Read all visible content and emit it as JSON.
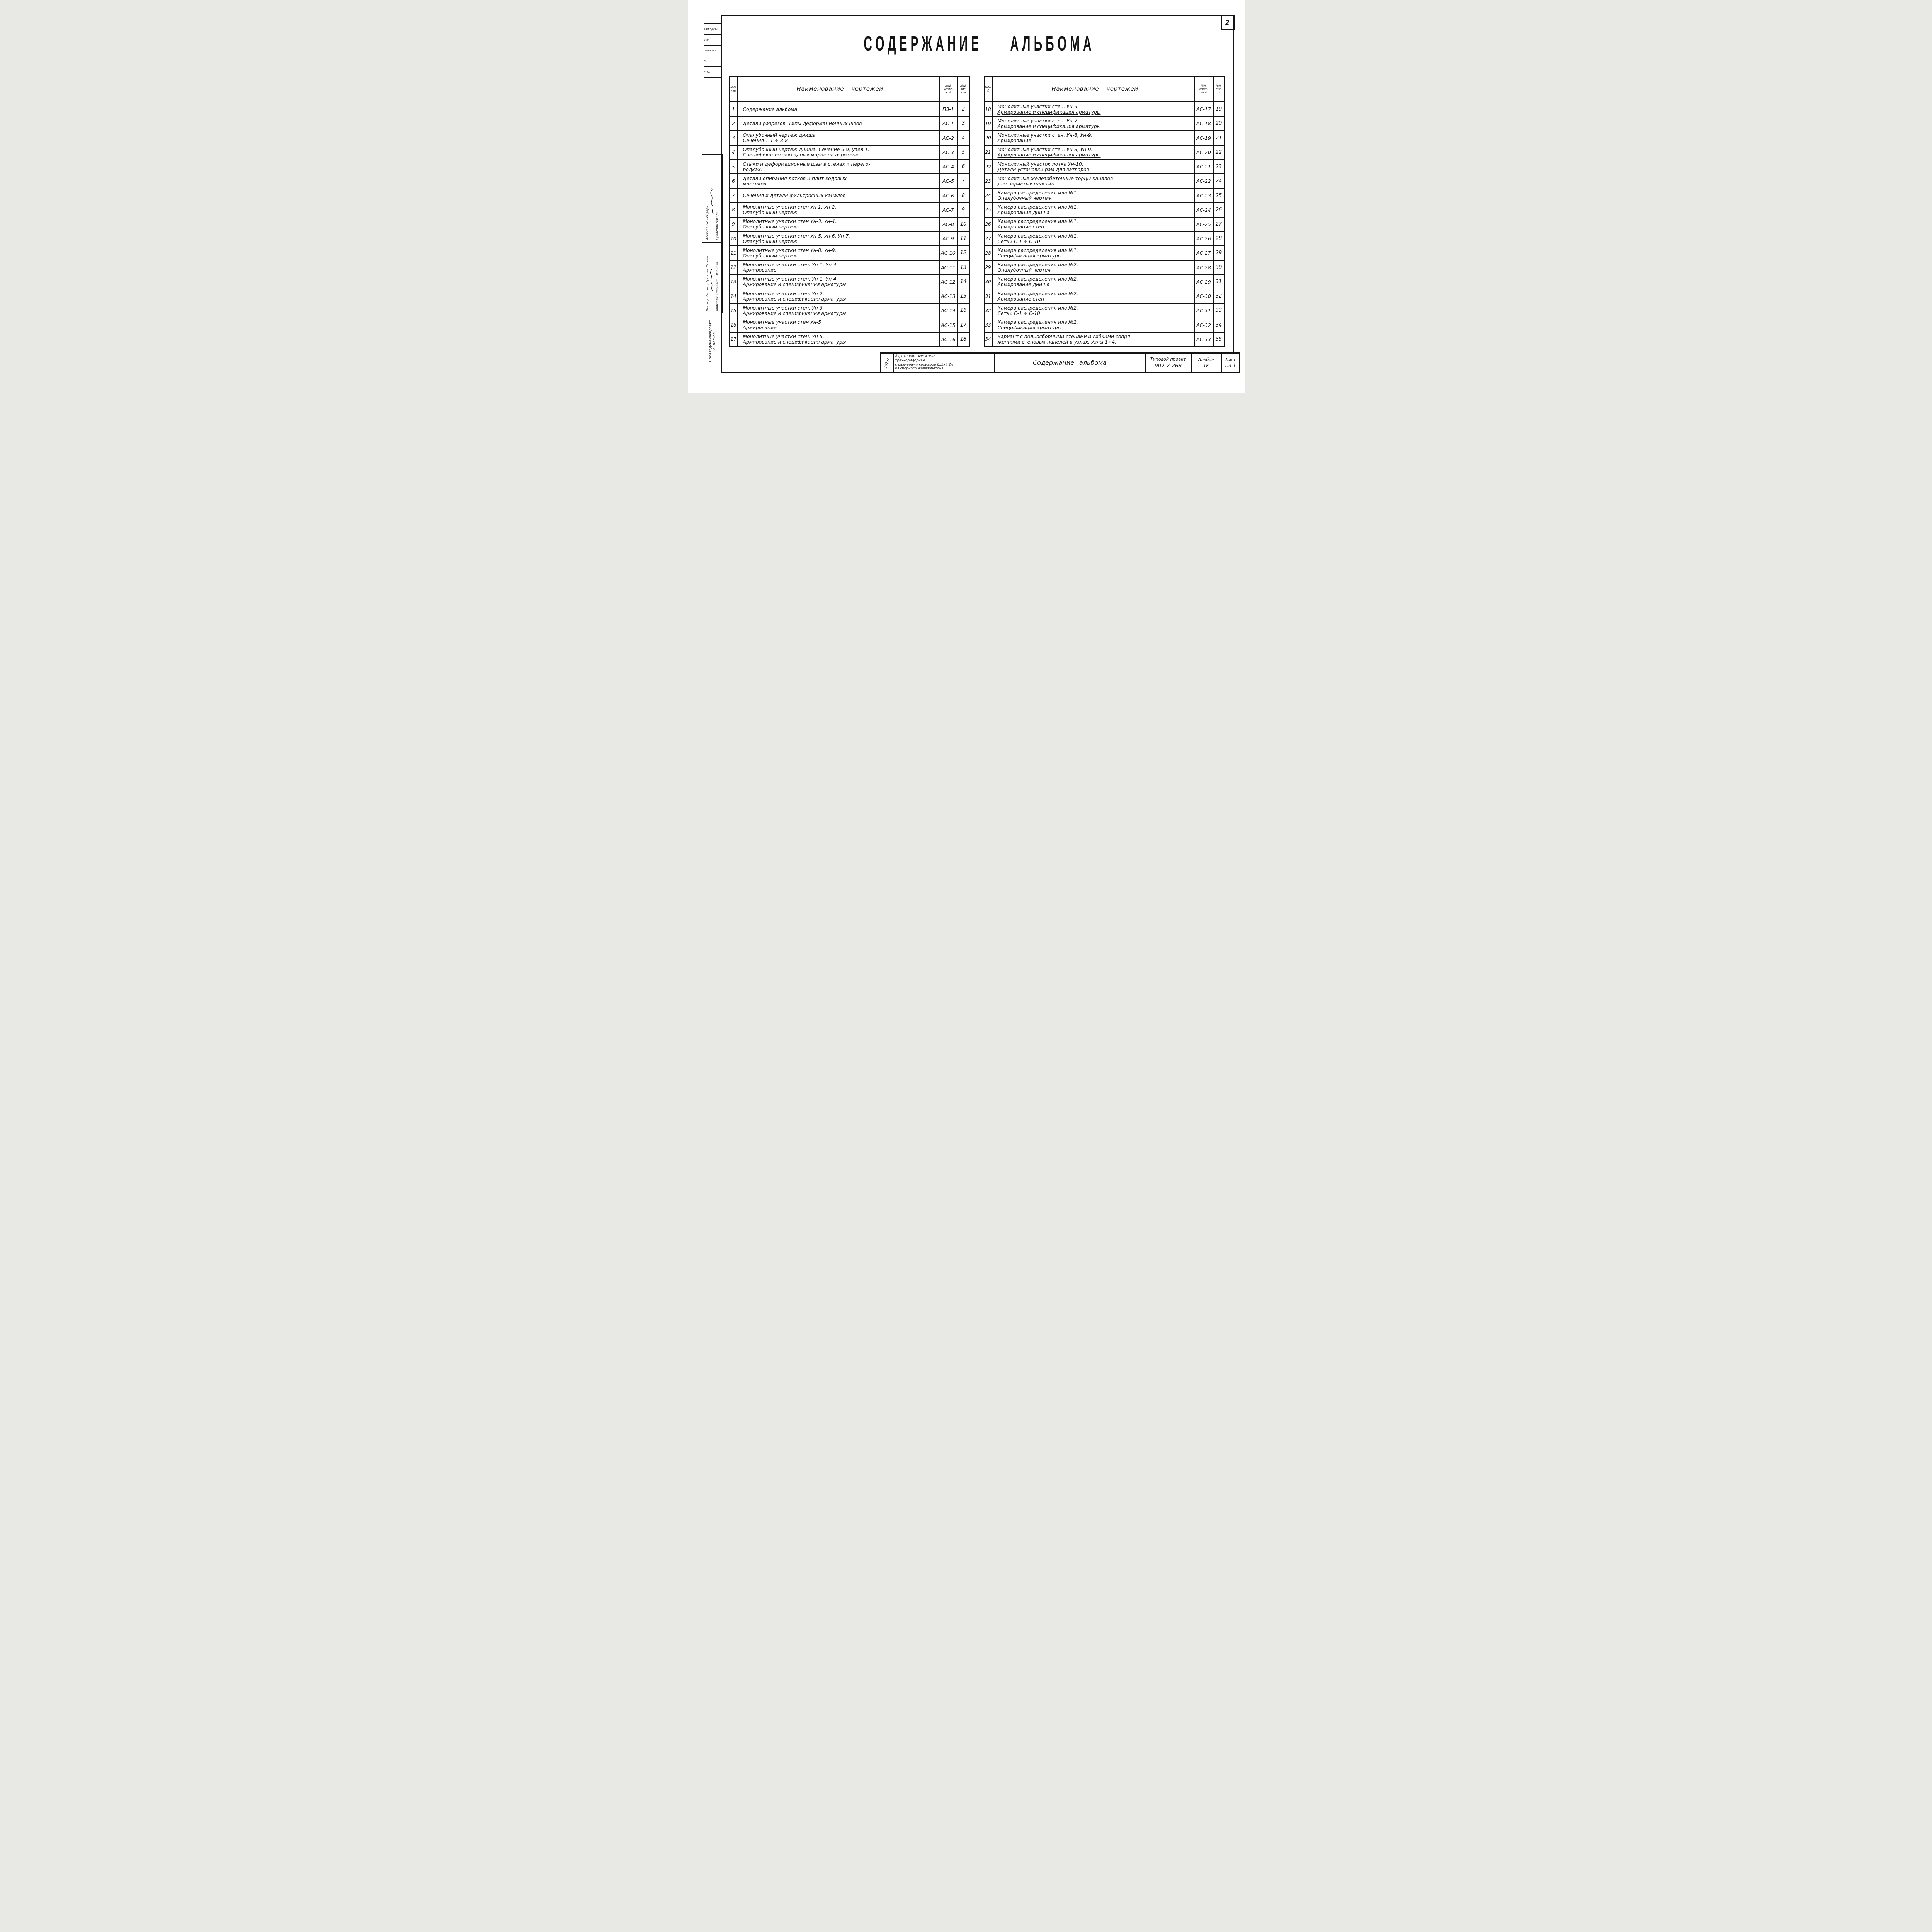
{
  "page": {
    "number": "2"
  },
  "title": "СОДЕРЖАНИЕ АЛЬБОМА",
  "tables": {
    "left": {
      "header": {
        "num": [
          "№№",
          "изм"
        ],
        "name": "Наименование чертежей",
        "dwg": [
          "№№",
          "черте-",
          "жей"
        ],
        "sh": [
          "№№",
          "лис-",
          "тов"
        ]
      },
      "rows": [
        {
          "n": "1",
          "l1": "Содержание альбома",
          "l2": "",
          "dwg": "П3-1",
          "sh": "2"
        },
        {
          "n": "2",
          "l1": "Детали разрезов. Типы деформационных швов",
          "l2": "",
          "dwg": "АС-1",
          "sh": "3"
        },
        {
          "n": "3",
          "l1": "Опалубочный чертеж днища.",
          "l2": "Сечения 1-1 ÷ 8-8",
          "dwg": "АС-2",
          "sh": "4"
        },
        {
          "n": "4",
          "l1": "Опалубочный чертеж днища. Сечение 9-9, узел 1.",
          "l2": "Спецификация закладных марок на аэротенк",
          "dwg": "АС-3",
          "sh": "5"
        },
        {
          "n": "5",
          "l1": "Стыки и деформационные швы в стенах и перего-",
          "l2": "родках.",
          "dwg": "АС-4",
          "sh": "6"
        },
        {
          "n": "6",
          "l1": "Детали опирания лотков и плит ходовых",
          "l2": "мостиков",
          "dwg": "АС-5",
          "sh": "7"
        },
        {
          "n": "7",
          "l1": "Сечения и детали фильтросных каналов",
          "l2": "",
          "dwg": "АС-6",
          "sh": "8"
        },
        {
          "n": "8",
          "l1": "Монолитные участки стен Ун-1, Ун-2.",
          "l2": "Опалубочный чертеж",
          "dwg": "АС-7",
          "sh": "9"
        },
        {
          "n": "9",
          "l1": "Монолитные участки стен Ун-3, Ун-4.",
          "l2": "Опалубочный чертеж",
          "dwg": "АС-8",
          "sh": "10"
        },
        {
          "n": "10",
          "l1": "Монолитные участки стен Ун-5, Ун-6, Ун-7.",
          "l2": "Опалубочный чертеж",
          "dwg": "АС-9",
          "sh": "11"
        },
        {
          "n": "11",
          "l1": "Монолитные участки стен Ун-8, Ун-9.",
          "l2": "Опалубочный чертеж",
          "dwg": "АС-10",
          "sh": "12"
        },
        {
          "n": "12",
          "l1": "Монолитные участки стен. Ун-1, Ун-4.",
          "l2": "Армирование",
          "dwg": "АС-11",
          "sh": "13"
        },
        {
          "n": "13",
          "l1": "Монолитные участки стен. Ун-1, Ун-4.",
          "l2": "Армирование и спецификация арматуры",
          "dwg": "АС-12",
          "sh": "14"
        },
        {
          "n": "14",
          "l1": "Монолитные участки стен. Ун-2.",
          "l2": "Армирование и спецификация арматуры",
          "dwg": "АС-13",
          "sh": "15"
        },
        {
          "n": "15",
          "l1": "Монолитные участки стен. Ун-3.",
          "l2": "Армирование и спецификация арматуры",
          "dwg": "АС-14",
          "sh": "16"
        },
        {
          "n": "16",
          "l1": "Монолитные участки стен Ун-5",
          "l2": "Армирование",
          "dwg": "АС-15",
          "sh": "17"
        },
        {
          "n": "17",
          "l1": "Монолитные участки стен. Ун-5.",
          "l2": "Армирование и спецификация арматуры",
          "dwg": "АС-16",
          "sh": "18"
        }
      ]
    },
    "right": {
      "header": {
        "num": [
          "№№",
          "п/п"
        ],
        "name": "Наименование чертежей",
        "dwg": [
          "№№",
          "черте-",
          "жей"
        ],
        "sh": [
          "№№",
          "лис-",
          "тов"
        ]
      },
      "rows": [
        {
          "n": "18",
          "l1": "Монолитные участки стен. Ун-6",
          "l2": "Армирование и спецификация арматуры",
          "u2": true,
          "dwg": "АС-17",
          "sh": "19"
        },
        {
          "n": "19",
          "l1": "Монолитные участки стен. Ун-7.",
          "l2": "Армирование и спецификация арматуры",
          "dwg": "АС-18",
          "sh": "20"
        },
        {
          "n": "20",
          "l1": "Монолитные участки стен. Ун-8, Ун-9.",
          "l2": "Армирование",
          "dwg": "АС-19",
          "sh": "21"
        },
        {
          "n": "21",
          "l1": "Монолитные участки стен. Ун-8, Ун-9.",
          "l2": "Армирование и спецификация арматуры",
          "u2": true,
          "dwg": "АС-20",
          "sh": "22"
        },
        {
          "n": "22",
          "l1": "Монолитный участок лотка Ун-10.",
          "l2": "Детали установки рам для затворов",
          "dwg": "АС-21",
          "sh": "23"
        },
        {
          "n": "23",
          "l1": "Монолитные железобетонные торцы каналов",
          "l2": "для пористых пластин",
          "dwg": "АС-22",
          "sh": "24"
        },
        {
          "n": "24",
          "l1": "Камера распределения ила №1.",
          "l2": "Опалубочный чертеж",
          "dwg": "АС-23",
          "sh": "25"
        },
        {
          "n": "25",
          "l1": "Камера распределения ила №1.",
          "l2": "Армирование днища",
          "dwg": "АС-24",
          "sh": "26"
        },
        {
          "n": "26",
          "l1": "Камера распределения ила №1.",
          "l2": "Армирование стен",
          "dwg": "АС-25",
          "sh": "27"
        },
        {
          "n": "27",
          "l1": "Камера распределения ила №1.",
          "l2": "Сетки С-1 ÷ С-10",
          "dwg": "АС-26",
          "sh": "28"
        },
        {
          "n": "28",
          "l1": "Камера распределения ила №1.",
          "l2": "Спецификация арматуры",
          "dwg": "АС-27",
          "sh": "29"
        },
        {
          "n": "29",
          "l1": "Камера распределения ила №2.",
          "l2": "Опалубочный чертеж",
          "dwg": "АС-28",
          "sh": "30"
        },
        {
          "n": "30",
          "l1": "Камера распределения ила №2.",
          "l2": "Армирование днища",
          "dwg": "АС-29",
          "sh": "31"
        },
        {
          "n": "31",
          "l1": "Камера распределения ила №2.",
          "l2": "Армирование стен",
          "dwg": "АС-30",
          "sh": "32"
        },
        {
          "n": "32",
          "l1": "Камера распределения ила №2.",
          "l2": "Сетки С-1 ÷ С-10",
          "dwg": "АС-31",
          "sh": "33"
        },
        {
          "n": "33",
          "l1": "Камера распределения ила №2.",
          "l2": "Спецификация арматуры",
          "dwg": "АС-32",
          "sh": "34"
        },
        {
          "n": "34",
          "l1": "Вариант с полносборными стенами и гибкими сопря-",
          "l2": "жениями стеновых панелей в узлах. Узлы 1÷4.",
          "dwg": "АС-33",
          "sh": "35"
        }
      ]
    }
  },
  "title_block": {
    "year": "1975г.",
    "object_lines": [
      "Аэротенки- смесители",
      "трехкоридорные",
      "с размерами коридора 6х5х4,2м",
      "из сборного железобетона"
    ],
    "doc_title": "Содержание альбома",
    "project_label": "Типовой проект",
    "project_number": "902-2-268",
    "album_label": "Альбом",
    "album_number": "IV",
    "sheet_label": "Лист",
    "sheet_number": "П3-1"
  },
  "margin": {
    "corner_fragments": [
      "вай проек",
      "2-2-",
      "ока-лист",
      "3 - 1",
      "в. №"
    ],
    "sig_upper_names": "Алексеенко    Бондарь",
    "sig_upper_labels": "Проверил      Бакара",
    "sig_lower_roles": "Нач. отд.   Гл. спец.   Рук. груп.   Ст. инж.",
    "sig_lower_names": "Апосенко    Опатовск.    Сизонова",
    "org_line1": "Союзводоканалпроект",
    "org_line2": "г. Москва"
  }
}
